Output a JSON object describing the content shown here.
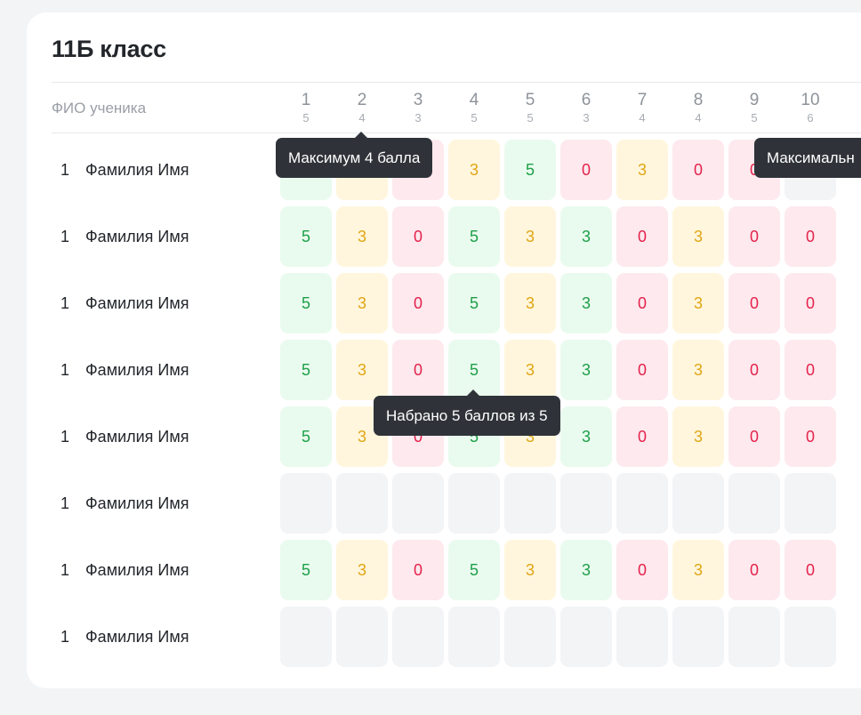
{
  "class_title": "11Б класс",
  "fio_header": "ФИО ученика",
  "columns": [
    {
      "num": "1",
      "max": "5"
    },
    {
      "num": "2",
      "max": "4"
    },
    {
      "num": "3",
      "max": "3"
    },
    {
      "num": "4",
      "max": "5"
    },
    {
      "num": "5",
      "max": "5"
    },
    {
      "num": "6",
      "max": "3"
    },
    {
      "num": "7",
      "max": "4"
    },
    {
      "num": "8",
      "max": "4"
    },
    {
      "num": "9",
      "max": "5"
    },
    {
      "num": "10",
      "max": "6"
    }
  ],
  "rows": [
    {
      "num": "1",
      "name": "Фамилия Имя",
      "scores": [
        "",
        "",
        "",
        "3",
        "5",
        "0",
        "3",
        "0",
        "0",
        ""
      ],
      "status": [
        "g",
        "y",
        "r",
        "y",
        "g",
        "r",
        "y",
        "r",
        "r",
        "e"
      ]
    },
    {
      "num": "1",
      "name": "Фамилия Имя",
      "scores": [
        "5",
        "3",
        "0",
        "5",
        "3",
        "3",
        "0",
        "3",
        "0",
        "0"
      ],
      "status": [
        "g",
        "y",
        "r",
        "g",
        "y",
        "g",
        "r",
        "y",
        "r",
        "r"
      ]
    },
    {
      "num": "1",
      "name": "Фамилия Имя",
      "scores": [
        "5",
        "3",
        "0",
        "5",
        "3",
        "3",
        "0",
        "3",
        "0",
        "0"
      ],
      "status": [
        "g",
        "y",
        "r",
        "g",
        "y",
        "g",
        "r",
        "y",
        "r",
        "r"
      ]
    },
    {
      "num": "1",
      "name": "Фамилия Имя",
      "scores": [
        "5",
        "3",
        "0",
        "5",
        "3",
        "3",
        "0",
        "3",
        "0",
        "0"
      ],
      "status": [
        "g",
        "y",
        "r",
        "g",
        "y",
        "g",
        "r",
        "y",
        "r",
        "r"
      ]
    },
    {
      "num": "1",
      "name": "Фамилия Имя",
      "scores": [
        "5",
        "3",
        "0",
        "5",
        "3",
        "3",
        "0",
        "3",
        "0",
        "0"
      ],
      "status": [
        "g",
        "y",
        "r",
        "g",
        "y",
        "g",
        "r",
        "y",
        "r",
        "r"
      ]
    },
    {
      "num": "1",
      "name": "Фамилия Имя",
      "scores": [
        "",
        "",
        "",
        "",
        "",
        "",
        "",
        "",
        "",
        ""
      ],
      "status": [
        "e",
        "e",
        "e",
        "e",
        "e",
        "e",
        "e",
        "e",
        "e",
        "e"
      ]
    },
    {
      "num": "1",
      "name": "Фамилия Имя",
      "scores": [
        "5",
        "3",
        "0",
        "5",
        "3",
        "3",
        "0",
        "3",
        "0",
        "0"
      ],
      "status": [
        "g",
        "y",
        "r",
        "g",
        "y",
        "g",
        "r",
        "y",
        "r",
        "r"
      ]
    },
    {
      "num": "1",
      "name": "Фамилия Имя",
      "scores": [
        "",
        "",
        "",
        "",
        "",
        "",
        "",
        "",
        "",
        ""
      ],
      "status": [
        "e",
        "e",
        "e",
        "e",
        "e",
        "e",
        "e",
        "e",
        "e",
        "e"
      ]
    }
  ],
  "tooltips": {
    "max_points": "Максимум 4 балла",
    "max_partial": "Максимальн",
    "scored": "Набрано 5 баллов из 5"
  },
  "colors": {
    "good": "#1e9e4a",
    "partial": "#e0a614",
    "bad": "#e5224b",
    "tooltip_bg": "#2f3339"
  }
}
